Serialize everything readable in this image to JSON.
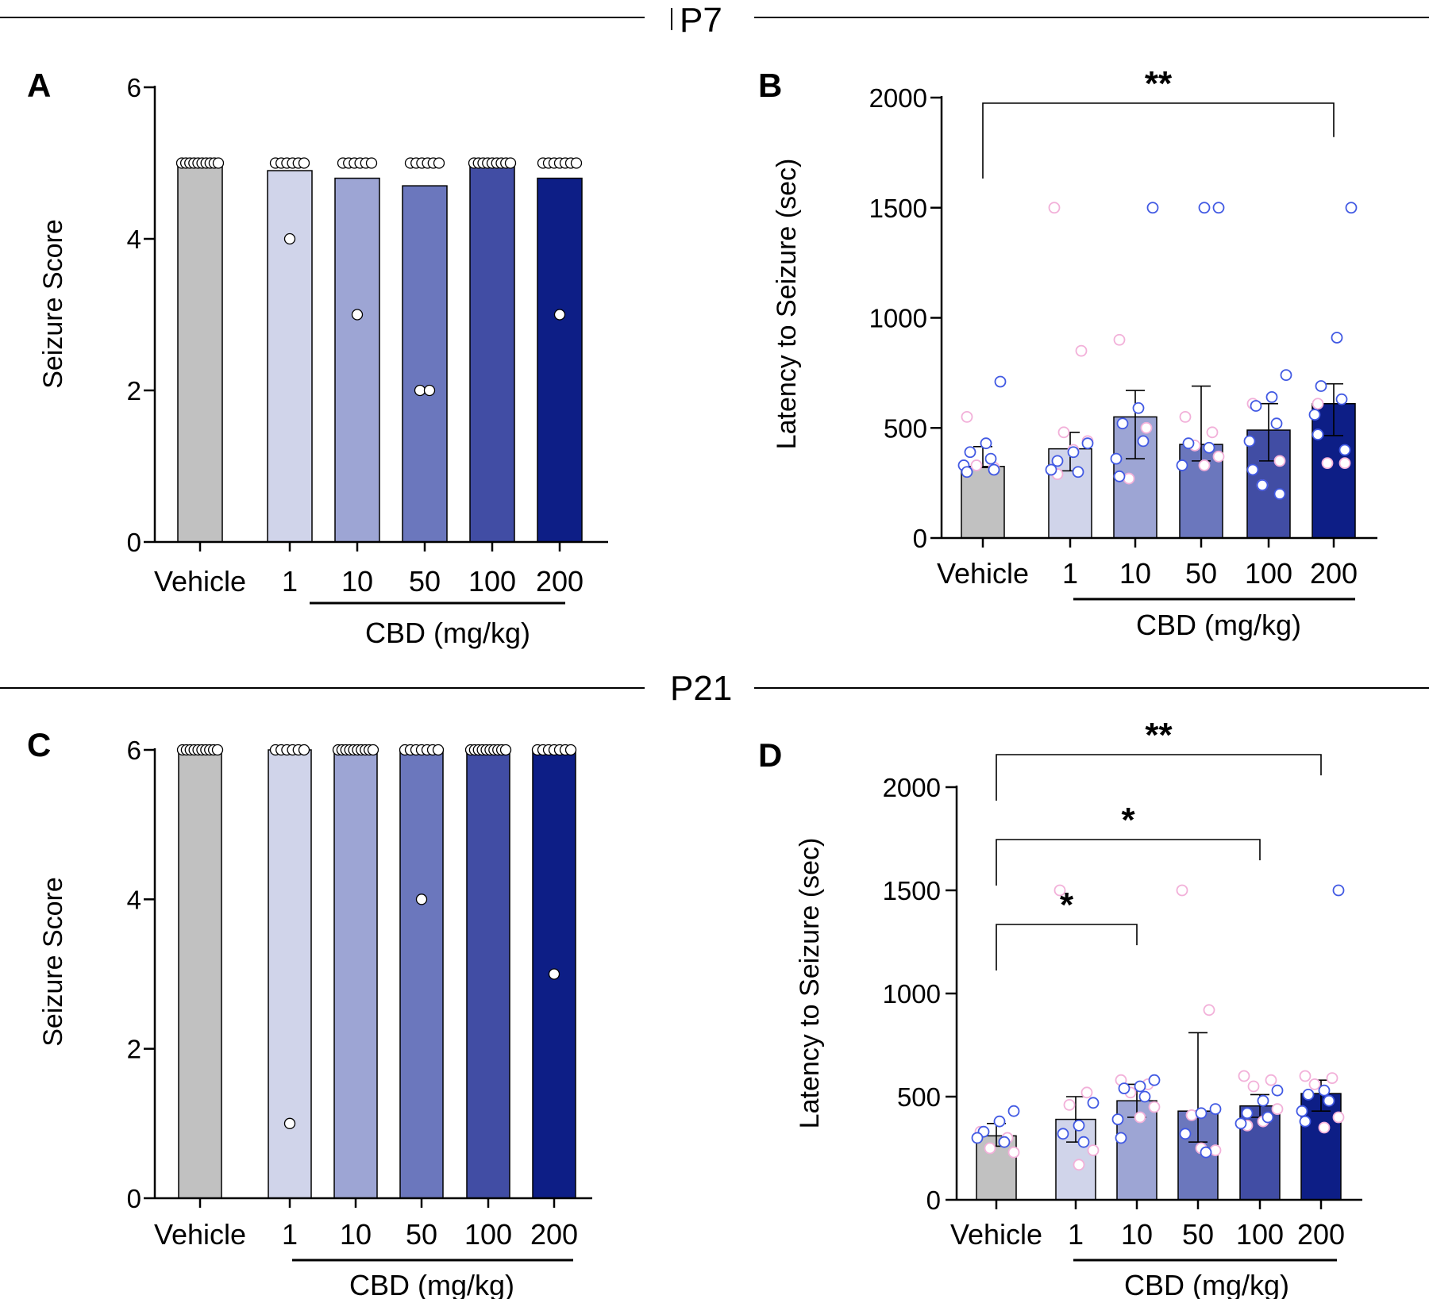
{
  "headers": {
    "top": "P7",
    "bottom": "P21"
  },
  "colors": {
    "bars": [
      "#c1c1c1",
      "#d0d4ea",
      "#9da5d4",
      "#6b77bd",
      "#414da4",
      "#0d1e86"
    ],
    "female_point": "#f2b0d9",
    "male_point": "#4159e3",
    "axis": "#000000"
  },
  "chart_data": [
    {
      "panel": "A",
      "type": "bar",
      "title": "",
      "ylabel": "Seizure Score",
      "xlabel": "CBD (mg/kg)",
      "categories": [
        "Vehicle",
        "1",
        "10",
        "50",
        "100",
        "200"
      ],
      "yticks": [
        "0",
        "2",
        "4",
        "6"
      ],
      "ylim": [
        0,
        6
      ],
      "values": [
        5,
        4.9,
        4.8,
        4.7,
        5,
        4.8
      ],
      "points": [
        [
          5,
          5,
          5,
          5,
          5,
          5,
          5,
          5,
          5,
          5
        ],
        [
          5,
          5,
          5,
          5,
          5,
          5,
          4
        ],
        [
          5,
          5,
          5,
          5,
          5,
          5,
          3
        ],
        [
          5,
          5,
          5,
          5,
          5,
          5,
          2,
          2
        ],
        [
          5,
          5,
          5,
          5,
          5,
          5,
          5,
          5,
          5
        ],
        [
          5,
          5,
          5,
          5,
          5,
          5,
          5,
          3
        ]
      ]
    },
    {
      "panel": "B",
      "type": "bar",
      "title": "",
      "ylabel": "Latency to Seizure (sec)",
      "xlabel": "CBD (mg/kg)",
      "categories": [
        "Vehicle",
        "1",
        "10",
        "50",
        "100",
        "200"
      ],
      "yticks": [
        "0",
        "500",
        "1000",
        "1500",
        "2000"
      ],
      "ylim": [
        0,
        2000
      ],
      "values": [
        325,
        405,
        550,
        425,
        490,
        610
      ],
      "errors": [
        [
          320,
          415
        ],
        [
          305,
          480
        ],
        [
          360,
          670
        ],
        [
          350,
          690
        ],
        [
          350,
          610
        ],
        [
          465,
          700
        ]
      ],
      "points_female": [
        [
          550,
          320,
          330
        ],
        [
          1500,
          850,
          480,
          440,
          400,
          290
        ],
        [
          900,
          500,
          270
        ],
        [
          550,
          480,
          420,
          370,
          330
        ],
        [
          610,
          350,
          240
        ],
        [
          610,
          340,
          340
        ]
      ],
      "points_male": [
        [
          710,
          430,
          390,
          360,
          330,
          300,
          310
        ],
        [
          430,
          390,
          350,
          300,
          310
        ],
        [
          1500,
          590,
          520,
          440,
          360,
          280
        ],
        [
          1500,
          1500,
          430,
          410,
          330
        ],
        [
          740,
          640,
          600,
          520,
          440,
          310,
          200,
          240
        ],
        [
          1500,
          910,
          690,
          630,
          560,
          470,
          400
        ]
      ],
      "significance": [
        {
          "from": 0,
          "to": 5,
          "label": "**"
        }
      ]
    },
    {
      "panel": "C",
      "type": "bar",
      "title": "",
      "ylabel": "Seizure Score",
      "xlabel": "CBD (mg/kg)",
      "categories": [
        "Vehicle",
        "1",
        "10",
        "50",
        "100",
        "200"
      ],
      "yticks": [
        "0",
        "2",
        "4",
        "6"
      ],
      "ylim": [
        0,
        6
      ],
      "values": [
        6,
        6,
        6,
        6,
        6,
        6
      ],
      "points": [
        [
          6,
          6,
          6,
          6,
          6,
          6,
          6,
          6,
          6,
          6
        ],
        [
          6,
          6,
          6,
          6,
          6,
          6,
          1
        ],
        [
          6,
          6,
          6,
          6,
          6,
          6,
          6,
          6,
          6,
          6
        ],
        [
          6,
          6,
          6,
          6,
          6,
          6,
          6,
          4
        ],
        [
          6,
          6,
          6,
          6,
          6,
          6,
          6,
          6,
          6,
          6
        ],
        [
          6,
          6,
          6,
          6,
          6,
          6,
          6,
          3
        ]
      ]
    },
    {
      "panel": "D",
      "type": "bar",
      "title": "",
      "ylabel": "Latency to Seizure (sec)",
      "xlabel": "CBD (mg/kg)",
      "categories": [
        "Vehicle",
        "1",
        "10",
        "50",
        "100",
        "200"
      ],
      "yticks": [
        "0",
        "500",
        "1000",
        "1500",
        "2000"
      ],
      "ylim": [
        0,
        2000
      ],
      "values": [
        310,
        390,
        480,
        430,
        455,
        515
      ],
      "errors": [
        [
          260,
          370
        ],
        [
          280,
          500
        ],
        [
          400,
          560
        ],
        [
          280,
          810
        ],
        [
          400,
          510
        ],
        [
          430,
          580
        ]
      ],
      "points_female": [
        [
          330,
          300,
          250,
          230
        ],
        [
          1500,
          520,
          460,
          240,
          170
        ],
        [
          580,
          560,
          520,
          450,
          400
        ],
        [
          1500,
          920,
          410,
          240,
          250
        ],
        [
          600,
          580,
          550,
          440,
          380,
          360
        ],
        [
          600,
          590,
          560,
          400,
          350
        ]
      ],
      "points_male": [
        [
          430,
          380,
          330,
          280,
          300
        ],
        [
          470,
          360,
          320,
          280
        ],
        [
          580,
          550,
          540,
          500,
          390,
          300
        ],
        [
          440,
          420,
          320,
          230
        ],
        [
          530,
          480,
          420,
          400,
          370
        ],
        [
          1500,
          530,
          510,
          480,
          430,
          380
        ]
      ],
      "significance": [
        {
          "from": 0,
          "to": 5,
          "label": "**"
        },
        {
          "from": 0,
          "to": 4,
          "label": "*"
        },
        {
          "from": 0,
          "to": 2,
          "label": "*"
        }
      ]
    }
  ]
}
